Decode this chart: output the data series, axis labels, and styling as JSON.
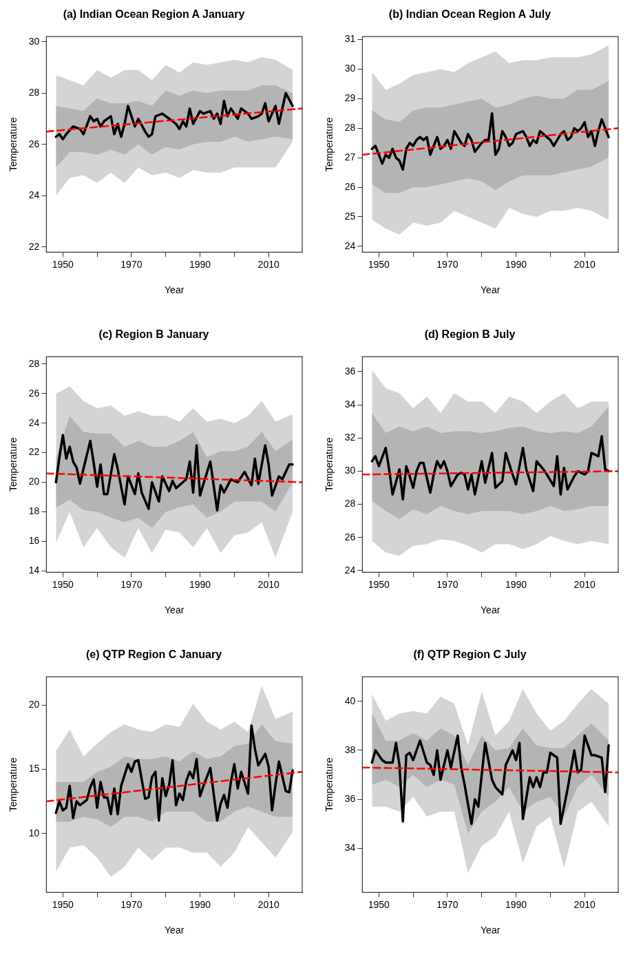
{
  "chart_data": [
    {
      "type": "line",
      "title": "(a) Indian Ocean Region A January",
      "xlabel": "Year",
      "ylabel": "Temperature",
      "xlim": [
        1945.2,
        2019.8
      ],
      "ylim": [
        21.8,
        30.2
      ],
      "xticks": [
        1950,
        {
          "value": 1960,
          "label": null
        },
        1970,
        {
          "value": 1980,
          "label": null
        },
        1990,
        {
          "value": 2000,
          "label": null
        },
        2010
      ],
      "yticks": [
        22,
        24,
        26,
        28,
        30
      ],
      "grid": false,
      "series": [
        {
          "type": "line",
          "color": "#d4d4d4",
          "x": [
            1948,
            1952,
            1956,
            1960,
            1964,
            1968,
            1972,
            1976,
            1980,
            1984,
            1988,
            1992,
            1996,
            2000,
            2004,
            2008,
            2012,
            2017
          ],
          "values": [
            null,
            null,
            null,
            null,
            null,
            null,
            null,
            null,
            null,
            null,
            null,
            null,
            null,
            null,
            null,
            null,
            null,
            null
          ],
          "lower": [
            24.0,
            24.7,
            24.8,
            24.5,
            24.9,
            24.5,
            25.1,
            24.8,
            24.9,
            24.7,
            25.0,
            24.9,
            24.9,
            25.1,
            25.1,
            25.1,
            25.1,
            26.1
          ],
          "upper": [
            28.7,
            28.5,
            28.3,
            28.9,
            28.6,
            28.9,
            28.9,
            28.5,
            29.1,
            28.8,
            29.2,
            29.1,
            29.2,
            29.3,
            29.2,
            29.4,
            29.3,
            28.9
          ]
        },
        {
          "type": "line",
          "color": "#b4b4b4",
          "x": [
            1948,
            1952,
            1956,
            1960,
            1964,
            1968,
            1972,
            1976,
            1980,
            1984,
            1988,
            1992,
            1996,
            2000,
            2004,
            2008,
            2012,
            2017
          ],
          "values": [
            null,
            null,
            null,
            null,
            null,
            null,
            null,
            null,
            null,
            null,
            null,
            null,
            null,
            null,
            null,
            null,
            null,
            null
          ],
          "lower": [
            25.1,
            25.7,
            25.7,
            25.6,
            25.8,
            25.6,
            26.0,
            25.6,
            25.9,
            25.8,
            26.0,
            26.1,
            26.1,
            26.3,
            26.1,
            26.2,
            26.3,
            26.2
          ],
          "upper": [
            27.5,
            27.4,
            27.3,
            27.8,
            27.6,
            27.6,
            27.7,
            27.5,
            28.1,
            27.9,
            28.1,
            28.0,
            28.1,
            28.1,
            28.1,
            28.3,
            28.3,
            28.0
          ]
        },
        {
          "type": "line",
          "color": "#000000",
          "x": [
            1948,
            1949,
            1950,
            1951,
            1953,
            1955,
            1956,
            1958,
            1959,
            1960,
            1961,
            1962,
            1964,
            1965,
            1966,
            1967,
            1968,
            1969,
            1971,
            1972,
            1974,
            1975,
            1976,
            1977,
            1979,
            1981,
            1983,
            1984,
            1985,
            1986,
            1987,
            1988,
            1990,
            1991,
            1993,
            1994,
            1995,
            1996,
            1997,
            1998,
            1999,
            2001,
            2002,
            2004,
            2005,
            2007,
            2008,
            2009,
            2010,
            2011,
            2012,
            2013,
            2015,
            2017
          ],
          "values": [
            26.3,
            26.4,
            26.2,
            26.4,
            26.7,
            26.6,
            26.4,
            27.1,
            26.9,
            27.0,
            26.7,
            26.9,
            27.1,
            26.4,
            26.8,
            26.3,
            26.8,
            27.5,
            26.7,
            27.0,
            26.5,
            26.3,
            26.4,
            27.1,
            27.2,
            27.0,
            26.8,
            26.6,
            26.9,
            26.7,
            27.4,
            26.8,
            27.3,
            27.2,
            27.3,
            27.0,
            27.2,
            26.8,
            27.7,
            27.1,
            27.4,
            27.0,
            27.4,
            27.2,
            27.0,
            27.1,
            27.2,
            27.6,
            26.9,
            27.2,
            27.5,
            26.8,
            28.0,
            27.5
          ]
        },
        {
          "type": "line",
          "color": "#ff0000",
          "line_style": "dashed",
          "x": [
            1945.2,
            2019.8
          ],
          "values": [
            26.5,
            27.4
          ]
        }
      ]
    },
    {
      "type": "line",
      "title": "(b) Indian Ocean Region A July",
      "xlabel": "Year",
      "ylabel": "Temperature",
      "xlim": [
        1945.2,
        2019.8
      ],
      "ylim": [
        23.8,
        31.1
      ],
      "xticks": [
        1950,
        {
          "value": 1960,
          "label": null
        },
        1970,
        {
          "value": 1980,
          "label": null
        },
        1990,
        {
          "value": 2000,
          "label": null
        },
        2010
      ],
      "yticks": [
        24,
        25,
        26,
        27,
        28,
        29,
        30,
        31
      ],
      "grid": false,
      "series": [
        {
          "type": "line",
          "color": "#d4d4d4",
          "x": [
            1948,
            1952,
            1956,
            1960,
            1964,
            1968,
            1972,
            1976,
            1980,
            1984,
            1988,
            1992,
            1996,
            2000,
            2004,
            2008,
            2012,
            2017
          ],
          "values": [
            null,
            null,
            null,
            null,
            null,
            null,
            null,
            null,
            null,
            null,
            null,
            null,
            null,
            null,
            null,
            null,
            null,
            null
          ],
          "lower": [
            24.9,
            24.6,
            24.4,
            24.8,
            24.7,
            24.8,
            25.2,
            25.0,
            24.8,
            24.6,
            25.3,
            25.1,
            25.0,
            25.2,
            25.2,
            25.3,
            25.2,
            24.9
          ],
          "upper": [
            29.9,
            29.3,
            29.5,
            29.8,
            29.9,
            30.0,
            29.9,
            30.2,
            30.4,
            30.6,
            30.2,
            30.3,
            30.3,
            30.4,
            30.4,
            30.4,
            30.5,
            30.8
          ]
        },
        {
          "type": "line",
          "color": "#b4b4b4",
          "x": [
            1948,
            1952,
            1956,
            1960,
            1964,
            1968,
            1972,
            1976,
            1980,
            1984,
            1988,
            1992,
            1996,
            2000,
            2004,
            2008,
            2012,
            2017
          ],
          "values": [
            null,
            null,
            null,
            null,
            null,
            null,
            null,
            null,
            null,
            null,
            null,
            null,
            null,
            null,
            null,
            null,
            null,
            null
          ],
          "lower": [
            26.1,
            25.8,
            25.8,
            26.0,
            26.0,
            26.1,
            26.2,
            26.3,
            26.2,
            25.9,
            26.2,
            26.4,
            26.4,
            26.4,
            26.5,
            26.6,
            26.7,
            27.0
          ],
          "upper": [
            28.6,
            28.3,
            28.2,
            28.6,
            28.7,
            28.7,
            28.8,
            28.9,
            29.0,
            28.7,
            28.8,
            29.0,
            29.1,
            29.0,
            29.0,
            29.3,
            29.3,
            29.6
          ]
        },
        {
          "type": "line",
          "color": "#000000",
          "x": [
            1948,
            1949,
            1951,
            1952,
            1953,
            1954,
            1955,
            1956,
            1957,
            1958,
            1959,
            1960,
            1961,
            1962,
            1963,
            1964,
            1965,
            1966,
            1967,
            1968,
            1969,
            1970,
            1971,
            1972,
            1974,
            1975,
            1976,
            1977,
            1978,
            1980,
            1981,
            1982,
            1983,
            1984,
            1985,
            1986,
            1987,
            1988,
            1989,
            1990,
            1992,
            1993,
            1994,
            1995,
            1996,
            1997,
            1999,
            2000,
            2001,
            2003,
            2004,
            2005,
            2006,
            2007,
            2008,
            2009,
            2010,
            2011,
            2012,
            2013,
            2014,
            2015,
            2017
          ],
          "values": [
            27.3,
            27.4,
            26.8,
            27.1,
            27.0,
            27.3,
            27.0,
            26.9,
            26.6,
            27.3,
            27.5,
            27.4,
            27.6,
            27.7,
            27.6,
            27.7,
            27.1,
            27.4,
            27.7,
            27.3,
            27.4,
            27.6,
            27.3,
            27.9,
            27.5,
            27.4,
            27.8,
            27.6,
            27.2,
            27.5,
            27.6,
            27.6,
            28.5,
            27.1,
            27.3,
            27.9,
            27.7,
            27.4,
            27.5,
            27.8,
            27.9,
            27.7,
            27.4,
            27.6,
            27.5,
            27.9,
            27.7,
            27.6,
            27.4,
            27.8,
            27.9,
            27.6,
            27.7,
            28.0,
            27.9,
            28.0,
            28.2,
            27.7,
            27.9,
            27.4,
            27.9,
            28.3,
            27.7
          ]
        },
        {
          "type": "line",
          "color": "#ff0000",
          "line_style": "dashed",
          "x": [
            1945.2,
            2019.8
          ],
          "values": [
            27.1,
            28.0
          ]
        }
      ]
    },
    {
      "type": "line",
      "title": "(c) Region B January",
      "xlabel": "Year",
      "ylabel": "Temperature",
      "xlim": [
        1945.2,
        2019.8
      ],
      "ylim": [
        13.9,
        28.5
      ],
      "xticks": [
        1950,
        {
          "value": 1960,
          "label": null
        },
        1970,
        {
          "value": 1980,
          "label": null
        },
        1990,
        {
          "value": 2000,
          "label": null
        },
        2010
      ],
      "yticks": [
        14,
        16,
        18,
        20,
        22,
        24,
        26,
        28
      ],
      "grid": false,
      "series": [
        {
          "type": "line",
          "color": "#d4d4d4",
          "x": [
            1948,
            1952,
            1956,
            1960,
            1964,
            1968,
            1972,
            1976,
            1980,
            1984,
            1988,
            1992,
            1996,
            2000,
            2004,
            2008,
            2012,
            2017
          ],
          "values": [
            null,
            null,
            null,
            null,
            null,
            null,
            null,
            null,
            null,
            null,
            null,
            null,
            null,
            null,
            null,
            null,
            null,
            null
          ],
          "lower": [
            15.9,
            18.0,
            15.6,
            16.9,
            15.6,
            14.9,
            16.9,
            15.2,
            16.8,
            16.6,
            15.6,
            16.9,
            15.2,
            16.4,
            16.6,
            17.3,
            14.9,
            18.0
          ],
          "upper": [
            26.0,
            26.5,
            25.5,
            25.0,
            25.2,
            24.5,
            24.8,
            24.5,
            24.5,
            24.1,
            25.0,
            24.1,
            24.3,
            24.0,
            24.5,
            25.5,
            24.1,
            24.6
          ]
        },
        {
          "type": "line",
          "color": "#b4b4b4",
          "x": [
            1948,
            1952,
            1956,
            1960,
            1964,
            1968,
            1972,
            1976,
            1980,
            1984,
            1988,
            1992,
            1996,
            2000,
            2004,
            2008,
            2012,
            2017
          ],
          "values": [
            null,
            null,
            null,
            null,
            null,
            null,
            null,
            null,
            null,
            null,
            null,
            null,
            null,
            null,
            null,
            null,
            null,
            null
          ],
          "lower": [
            18.3,
            18.8,
            18.1,
            18.0,
            17.6,
            17.3,
            17.6,
            16.9,
            18.0,
            18.3,
            18.5,
            17.6,
            18.0,
            18.7,
            18.7,
            18.7,
            18.0,
            20.0
          ],
          "upper": [
            21.6,
            24.5,
            23.4,
            23.3,
            23.3,
            22.4,
            22.8,
            22.4,
            22.4,
            22.8,
            23.4,
            21.7,
            22.1,
            22.1,
            22.4,
            23.4,
            22.1,
            22.9
          ]
        },
        {
          "type": "line",
          "color": "#000000",
          "x": [
            1948,
            1949,
            1950,
            1951,
            1952,
            1953,
            1954,
            1955,
            1956,
            1958,
            1959,
            1960,
            1961,
            1962,
            1963,
            1965,
            1966,
            1968,
            1969,
            1971,
            1972,
            1973,
            1975,
            1976,
            1978,
            1979,
            1981,
            1982,
            1983,
            1985,
            1986,
            1987,
            1988,
            1989,
            1990,
            1991,
            1993,
            1995,
            1996,
            1997,
            1999,
            2001,
            2003,
            2005,
            2006,
            2007,
            2009,
            2010,
            2011,
            2013,
            2014,
            2016,
            2017
          ],
          "values": [
            20.0,
            21.7,
            23.2,
            21.6,
            22.4,
            21.4,
            21.0,
            19.9,
            20.9,
            22.8,
            21.3,
            19.7,
            21.2,
            19.2,
            19.2,
            21.9,
            20.9,
            18.5,
            20.4,
            19.2,
            20.6,
            19.3,
            18.2,
            20.0,
            18.7,
            20.4,
            19.4,
            20.1,
            19.6,
            20.0,
            20.2,
            21.4,
            19.3,
            22.5,
            19.1,
            19.9,
            21.4,
            18.1,
            19.8,
            19.3,
            20.2,
            20.0,
            20.7,
            19.8,
            21.6,
            19.9,
            22.5,
            21.2,
            19.1,
            20.4,
            20.2,
            21.2,
            21.2
          ]
        },
        {
          "type": "line",
          "color": "#ff0000",
          "line_style": "dashed",
          "x": [
            1945.2,
            2019.8
          ],
          "values": [
            20.6,
            20.0
          ]
        }
      ]
    },
    {
      "type": "line",
      "title": "(d) Region B July",
      "xlabel": "Year",
      "ylabel": "Temperature",
      "xlim": [
        1945.2,
        2019.8
      ],
      "ylim": [
        23.9,
        36.9
      ],
      "xticks": [
        1950,
        {
          "value": 1960,
          "label": null
        },
        1970,
        {
          "value": 1980,
          "label": null
        },
        1990,
        {
          "value": 2000,
          "label": null
        },
        2010
      ],
      "yticks": [
        24,
        26,
        28,
        30,
        32,
        34,
        36
      ],
      "grid": false,
      "series": [
        {
          "type": "line",
          "color": "#d4d4d4",
          "x": [
            1948,
            1952,
            1956,
            1960,
            1964,
            1968,
            1972,
            1976,
            1980,
            1984,
            1988,
            1992,
            1996,
            2000,
            2004,
            2008,
            2012,
            2017
          ],
          "values": [
            null,
            null,
            null,
            null,
            null,
            null,
            null,
            null,
            null,
            null,
            null,
            null,
            null,
            null,
            null,
            null,
            null,
            null
          ],
          "lower": [
            25.8,
            25.1,
            24.9,
            25.5,
            25.6,
            25.9,
            25.8,
            25.5,
            25.1,
            25.6,
            25.6,
            25.3,
            25.6,
            26.1,
            25.8,
            25.6,
            25.8,
            25.6
          ],
          "upper": [
            36.1,
            35.0,
            34.7,
            33.8,
            34.5,
            33.5,
            34.7,
            34.2,
            34.2,
            33.5,
            34.5,
            34.2,
            33.5,
            34.2,
            34.7,
            33.8,
            34.2,
            34.2
          ]
        },
        {
          "type": "line",
          "color": "#b4b4b4",
          "x": [
            1948,
            1952,
            1956,
            1960,
            1964,
            1968,
            1972,
            1976,
            1980,
            1984,
            1988,
            1992,
            1996,
            2000,
            2004,
            2008,
            2012,
            2017
          ],
          "values": [
            null,
            null,
            null,
            null,
            null,
            null,
            null,
            null,
            null,
            null,
            null,
            null,
            null,
            null,
            null,
            null,
            null,
            null
          ],
          "lower": [
            28.2,
            27.6,
            27.1,
            27.7,
            27.4,
            27.9,
            27.6,
            27.4,
            27.6,
            27.6,
            27.6,
            27.4,
            27.6,
            27.9,
            27.6,
            27.7,
            27.9,
            27.9
          ],
          "upper": [
            33.5,
            32.3,
            32.7,
            32.4,
            32.7,
            32.3,
            32.4,
            32.4,
            32.3,
            32.4,
            32.6,
            32.7,
            32.4,
            32.3,
            32.4,
            32.3,
            32.7,
            33.9
          ]
        },
        {
          "type": "line",
          "color": "#000000",
          "x": [
            1948,
            1949,
            1950,
            1952,
            1953,
            1954,
            1956,
            1957,
            1958,
            1959,
            1960,
            1961,
            1962,
            1963,
            1965,
            1966,
            1967,
            1968,
            1969,
            1970,
            1971,
            1973,
            1974,
            1975,
            1976,
            1977,
            1978,
            1980,
            1981,
            1983,
            1984,
            1986,
            1987,
            1989,
            1990,
            1992,
            1993,
            1995,
            1996,
            1998,
            1999,
            2001,
            2002,
            2003,
            2004,
            2005,
            2007,
            2008,
            2010,
            2011,
            2012,
            2014,
            2015,
            2016,
            2017
          ],
          "values": [
            30.6,
            30.9,
            30.3,
            31.4,
            30.1,
            28.6,
            30.1,
            28.3,
            30.3,
            29.7,
            29.0,
            30.0,
            30.5,
            30.5,
            28.7,
            29.8,
            30.6,
            30.2,
            30.6,
            30.0,
            29.1,
            29.8,
            29.9,
            29.8,
            28.9,
            29.8,
            28.6,
            30.6,
            29.3,
            31.1,
            29.0,
            29.4,
            31.1,
            29.8,
            29.2,
            31.4,
            30.1,
            28.8,
            30.6,
            30.1,
            29.8,
            29.1,
            30.9,
            28.6,
            30.2,
            28.9,
            29.7,
            30.0,
            29.8,
            30.0,
            31.1,
            30.9,
            32.1,
            30.1,
            30.0
          ]
        },
        {
          "type": "line",
          "color": "#ff0000",
          "line_style": "dashed",
          "x": [
            1945.2,
            2019.8
          ],
          "values": [
            29.8,
            30.0
          ]
        }
      ]
    },
    {
      "type": "line",
      "title": "(e) QTP Region C January",
      "xlabel": "Year",
      "ylabel": "Temperature",
      "xlim": [
        1945.2,
        2019.8
      ],
      "ylim": [
        5.4,
        22.2
      ],
      "xticks": [
        1950,
        {
          "value": 1960,
          "label": null
        },
        1970,
        {
          "value": 1980,
          "label": null
        },
        1990,
        {
          "value": 2000,
          "label": null
        },
        2010
      ],
      "yticks": [
        10,
        15,
        20
      ],
      "grid": false,
      "series": [
        {
          "type": "line",
          "color": "#d4d4d4",
          "x": [
            1948,
            1952,
            1956,
            1960,
            1964,
            1968,
            1972,
            1976,
            1980,
            1984,
            1988,
            1992,
            1996,
            2000,
            2004,
            2008,
            2012,
            2017
          ],
          "values": [
            null,
            null,
            null,
            null,
            null,
            null,
            null,
            null,
            null,
            null,
            null,
            null,
            null,
            null,
            null,
            null,
            null,
            null
          ],
          "lower": [
            7.0,
            8.9,
            9.1,
            8.1,
            6.6,
            7.4,
            8.9,
            7.9,
            8.9,
            8.9,
            8.5,
            8.5,
            7.4,
            8.5,
            10.5,
            9.3,
            8.1,
            10.1
          ],
          "upper": [
            16.4,
            18.1,
            16.0,
            17.0,
            17.9,
            18.5,
            18.1,
            17.9,
            18.5,
            18.3,
            20.1,
            18.7,
            18.1,
            18.7,
            17.9,
            21.5,
            18.9,
            19.5
          ]
        },
        {
          "type": "line",
          "color": "#b4b4b4",
          "x": [
            1948,
            1952,
            1956,
            1960,
            1964,
            1968,
            1972,
            1976,
            1980,
            1984,
            1988,
            1992,
            1996,
            2000,
            2004,
            2008,
            2012,
            2017
          ],
          "values": [
            null,
            null,
            null,
            null,
            null,
            null,
            null,
            null,
            null,
            null,
            null,
            null,
            null,
            null,
            null,
            null,
            null,
            null
          ],
          "lower": [
            10.9,
            10.9,
            11.3,
            11.1,
            10.5,
            11.3,
            11.3,
            10.9,
            11.7,
            11.7,
            11.7,
            10.9,
            10.9,
            11.7,
            12.1,
            11.7,
            11.3,
            11.3
          ],
          "upper": [
            14.0,
            14.0,
            14.0,
            14.8,
            15.2,
            16.0,
            15.8,
            15.8,
            16.0,
            15.6,
            16.4,
            15.8,
            16.0,
            16.8,
            17.0,
            18.5,
            17.2,
            17.0
          ]
        },
        {
          "type": "line",
          "color": "#000000",
          "x": [
            1948,
            1949,
            1950,
            1951,
            1952,
            1953,
            1954,
            1955,
            1957,
            1958,
            1959,
            1960,
            1961,
            1962,
            1963,
            1964,
            1965,
            1966,
            1967,
            1969,
            1970,
            1971,
            1972,
            1974,
            1975,
            1976,
            1977,
            1978,
            1979,
            1980,
            1981,
            1982,
            1983,
            1984,
            1985,
            1986,
            1987,
            1988,
            1989,
            1990,
            1991,
            1993,
            1995,
            1996,
            1997,
            1998,
            1999,
            2000,
            2001,
            2002,
            2004,
            2005,
            2006,
            2007,
            2009,
            2010,
            2011,
            2012,
            2013,
            2015,
            2016,
            2017
          ],
          "values": [
            11.6,
            12.5,
            11.8,
            12.0,
            13.7,
            11.2,
            12.5,
            12.2,
            12.6,
            13.6,
            14.2,
            12.0,
            14.0,
            12.8,
            12.8,
            11.5,
            13.5,
            11.5,
            13.7,
            15.4,
            14.8,
            15.6,
            15.7,
            12.7,
            12.8,
            14.4,
            14.8,
            11.0,
            14.3,
            12.9,
            13.8,
            15.7,
            12.2,
            13.1,
            12.6,
            14.1,
            14.8,
            14.3,
            15.8,
            12.9,
            13.7,
            15.1,
            11.0,
            12.3,
            13.0,
            12.0,
            14.0,
            15.4,
            13.5,
            14.8,
            13.1,
            18.4,
            16.6,
            15.3,
            16.2,
            15.2,
            11.8,
            13.8,
            15.6,
            13.3,
            13.2,
            14.9
          ]
        },
        {
          "type": "line",
          "color": "#ff0000",
          "line_style": "dashed",
          "x": [
            1945.2,
            2019.8
          ],
          "values": [
            12.5,
            14.8
          ]
        }
      ]
    },
    {
      "type": "line",
      "title": "(f) QTP Region C July",
      "xlabel": "Year",
      "ylabel": "Temperature",
      "xlim": [
        1945.2,
        2019.8
      ],
      "ylim": [
        32.2,
        41.0
      ],
      "xticks": [
        1950,
        {
          "value": 1960,
          "label": null
        },
        1970,
        {
          "value": 1980,
          "label": null
        },
        1990,
        {
          "value": 2000,
          "label": null
        },
        2010
      ],
      "yticks": [
        34,
        36,
        38,
        40
      ],
      "grid": false,
      "series": [
        {
          "type": "line",
          "color": "#d4d4d4",
          "x": [
            1948,
            1952,
            1956,
            1960,
            1964,
            1968,
            1972,
            1976,
            1980,
            1984,
            1988,
            1992,
            1996,
            2000,
            2004,
            2008,
            2012,
            2017
          ],
          "values": [
            null,
            null,
            null,
            null,
            null,
            null,
            null,
            null,
            null,
            null,
            null,
            null,
            null,
            null,
            null,
            null,
            null,
            null
          ],
          "lower": [
            35.7,
            35.7,
            35.5,
            36.1,
            35.3,
            35.5,
            35.5,
            33.0,
            34.1,
            34.5,
            35.5,
            33.4,
            34.9,
            35.3,
            33.2,
            35.5,
            35.9,
            34.9
          ],
          "upper": [
            40.3,
            39.2,
            39.5,
            39.6,
            39.5,
            40.2,
            39.9,
            38.2,
            40.4,
            38.6,
            39.2,
            40.5,
            39.5,
            38.8,
            39.2,
            39.9,
            40.5,
            39.9
          ]
        },
        {
          "type": "line",
          "color": "#b4b4b4",
          "x": [
            1948,
            1952,
            1956,
            1960,
            1964,
            1968,
            1972,
            1976,
            1980,
            1984,
            1988,
            1992,
            1996,
            2000,
            2004,
            2008,
            2012,
            2017
          ],
          "values": [
            null,
            null,
            null,
            null,
            null,
            null,
            null,
            null,
            null,
            null,
            null,
            null,
            null,
            null,
            null,
            null,
            null,
            null
          ],
          "lower": [
            36.6,
            36.8,
            36.5,
            37.0,
            36.5,
            36.8,
            36.6,
            34.6,
            35.5,
            35.9,
            36.5,
            35.5,
            35.9,
            36.1,
            35.3,
            36.5,
            37.0,
            36.1
          ],
          "upper": [
            39.5,
            38.4,
            38.4,
            38.7,
            38.4,
            38.9,
            38.6,
            37.4,
            38.6,
            38.0,
            38.1,
            38.9,
            38.2,
            38.1,
            38.1,
            38.6,
            39.1,
            38.4
          ]
        },
        {
          "type": "line",
          "color": "#000000",
          "x": [
            1948,
            1949,
            1951,
            1952,
            1953,
            1954,
            1955,
            1956,
            1957,
            1958,
            1959,
            1960,
            1962,
            1964,
            1965,
            1966,
            1967,
            1968,
            1969,
            1970,
            1971,
            1973,
            1974,
            1975,
            1977,
            1978,
            1979,
            1981,
            1983,
            1984,
            1986,
            1987,
            1989,
            1990,
            1991,
            1992,
            1994,
            1995,
            1996,
            1997,
            1998,
            1999,
            2000,
            2002,
            2003,
            2005,
            2007,
            2008,
            2009,
            2010,
            2012,
            2013,
            2015,
            2016,
            2017
          ],
          "values": [
            37.5,
            38.0,
            37.6,
            37.5,
            37.5,
            37.5,
            38.3,
            37.4,
            35.1,
            37.8,
            37.9,
            37.6,
            38.4,
            37.5,
            37.4,
            37.0,
            38.0,
            36.8,
            37.4,
            38.0,
            37.3,
            38.6,
            37.3,
            36.6,
            35.0,
            36.0,
            35.7,
            38.3,
            36.8,
            36.5,
            36.2,
            37.4,
            38.0,
            37.6,
            38.3,
            35.2,
            36.9,
            36.5,
            36.9,
            36.5,
            37.1,
            37.1,
            37.9,
            37.7,
            35.0,
            36.4,
            38.0,
            37.1,
            37.2,
            38.6,
            37.8,
            37.8,
            37.7,
            36.3,
            38.2
          ]
        },
        {
          "type": "line",
          "color": "#ff0000",
          "line_style": "dashed",
          "x": [
            1945.2,
            2019.8
          ],
          "values": [
            37.3,
            37.1
          ]
        }
      ]
    }
  ]
}
